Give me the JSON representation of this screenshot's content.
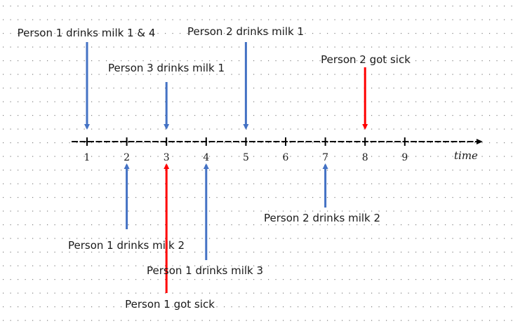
{
  "axis": {
    "title": "time",
    "ticks": [
      "1",
      "2",
      "3",
      "4",
      "5",
      "6",
      "7",
      "8",
      "9"
    ]
  },
  "colors": {
    "event_arrow": "#4472c4",
    "sick_arrow": "#ff0000",
    "axis": "#000000",
    "grid_dots": "#7f7f7f"
  },
  "events": [
    {
      "id": "p1-milk-1-4",
      "text": "Person 1 drinks milk 1 & 4",
      "time": 1,
      "side": "above",
      "kind": "drink"
    },
    {
      "id": "p3-milk-1",
      "text": "Person 3 drinks milk 1",
      "time": 3,
      "side": "above",
      "kind": "drink"
    },
    {
      "id": "p2-milk-1",
      "text": "Person 2 drinks milk 1",
      "time": 5,
      "side": "above",
      "kind": "drink"
    },
    {
      "id": "p2-sick",
      "text": "Person 2 got sick",
      "time": 8,
      "side": "above",
      "kind": "sick"
    },
    {
      "id": "p1-milk-2",
      "text": "Person 1 drinks milk 2",
      "time": 2,
      "side": "below",
      "kind": "drink"
    },
    {
      "id": "p1-sick",
      "text": "Person 1 got sick",
      "time": 3,
      "side": "below",
      "kind": "sick"
    },
    {
      "id": "p1-milk-3",
      "text": "Person 1 drinks milk 3",
      "time": 4,
      "side": "below",
      "kind": "drink"
    },
    {
      "id": "p2-milk-2",
      "text": "Person 2 drinks milk 2",
      "time": 7,
      "side": "below",
      "kind": "drink"
    }
  ]
}
